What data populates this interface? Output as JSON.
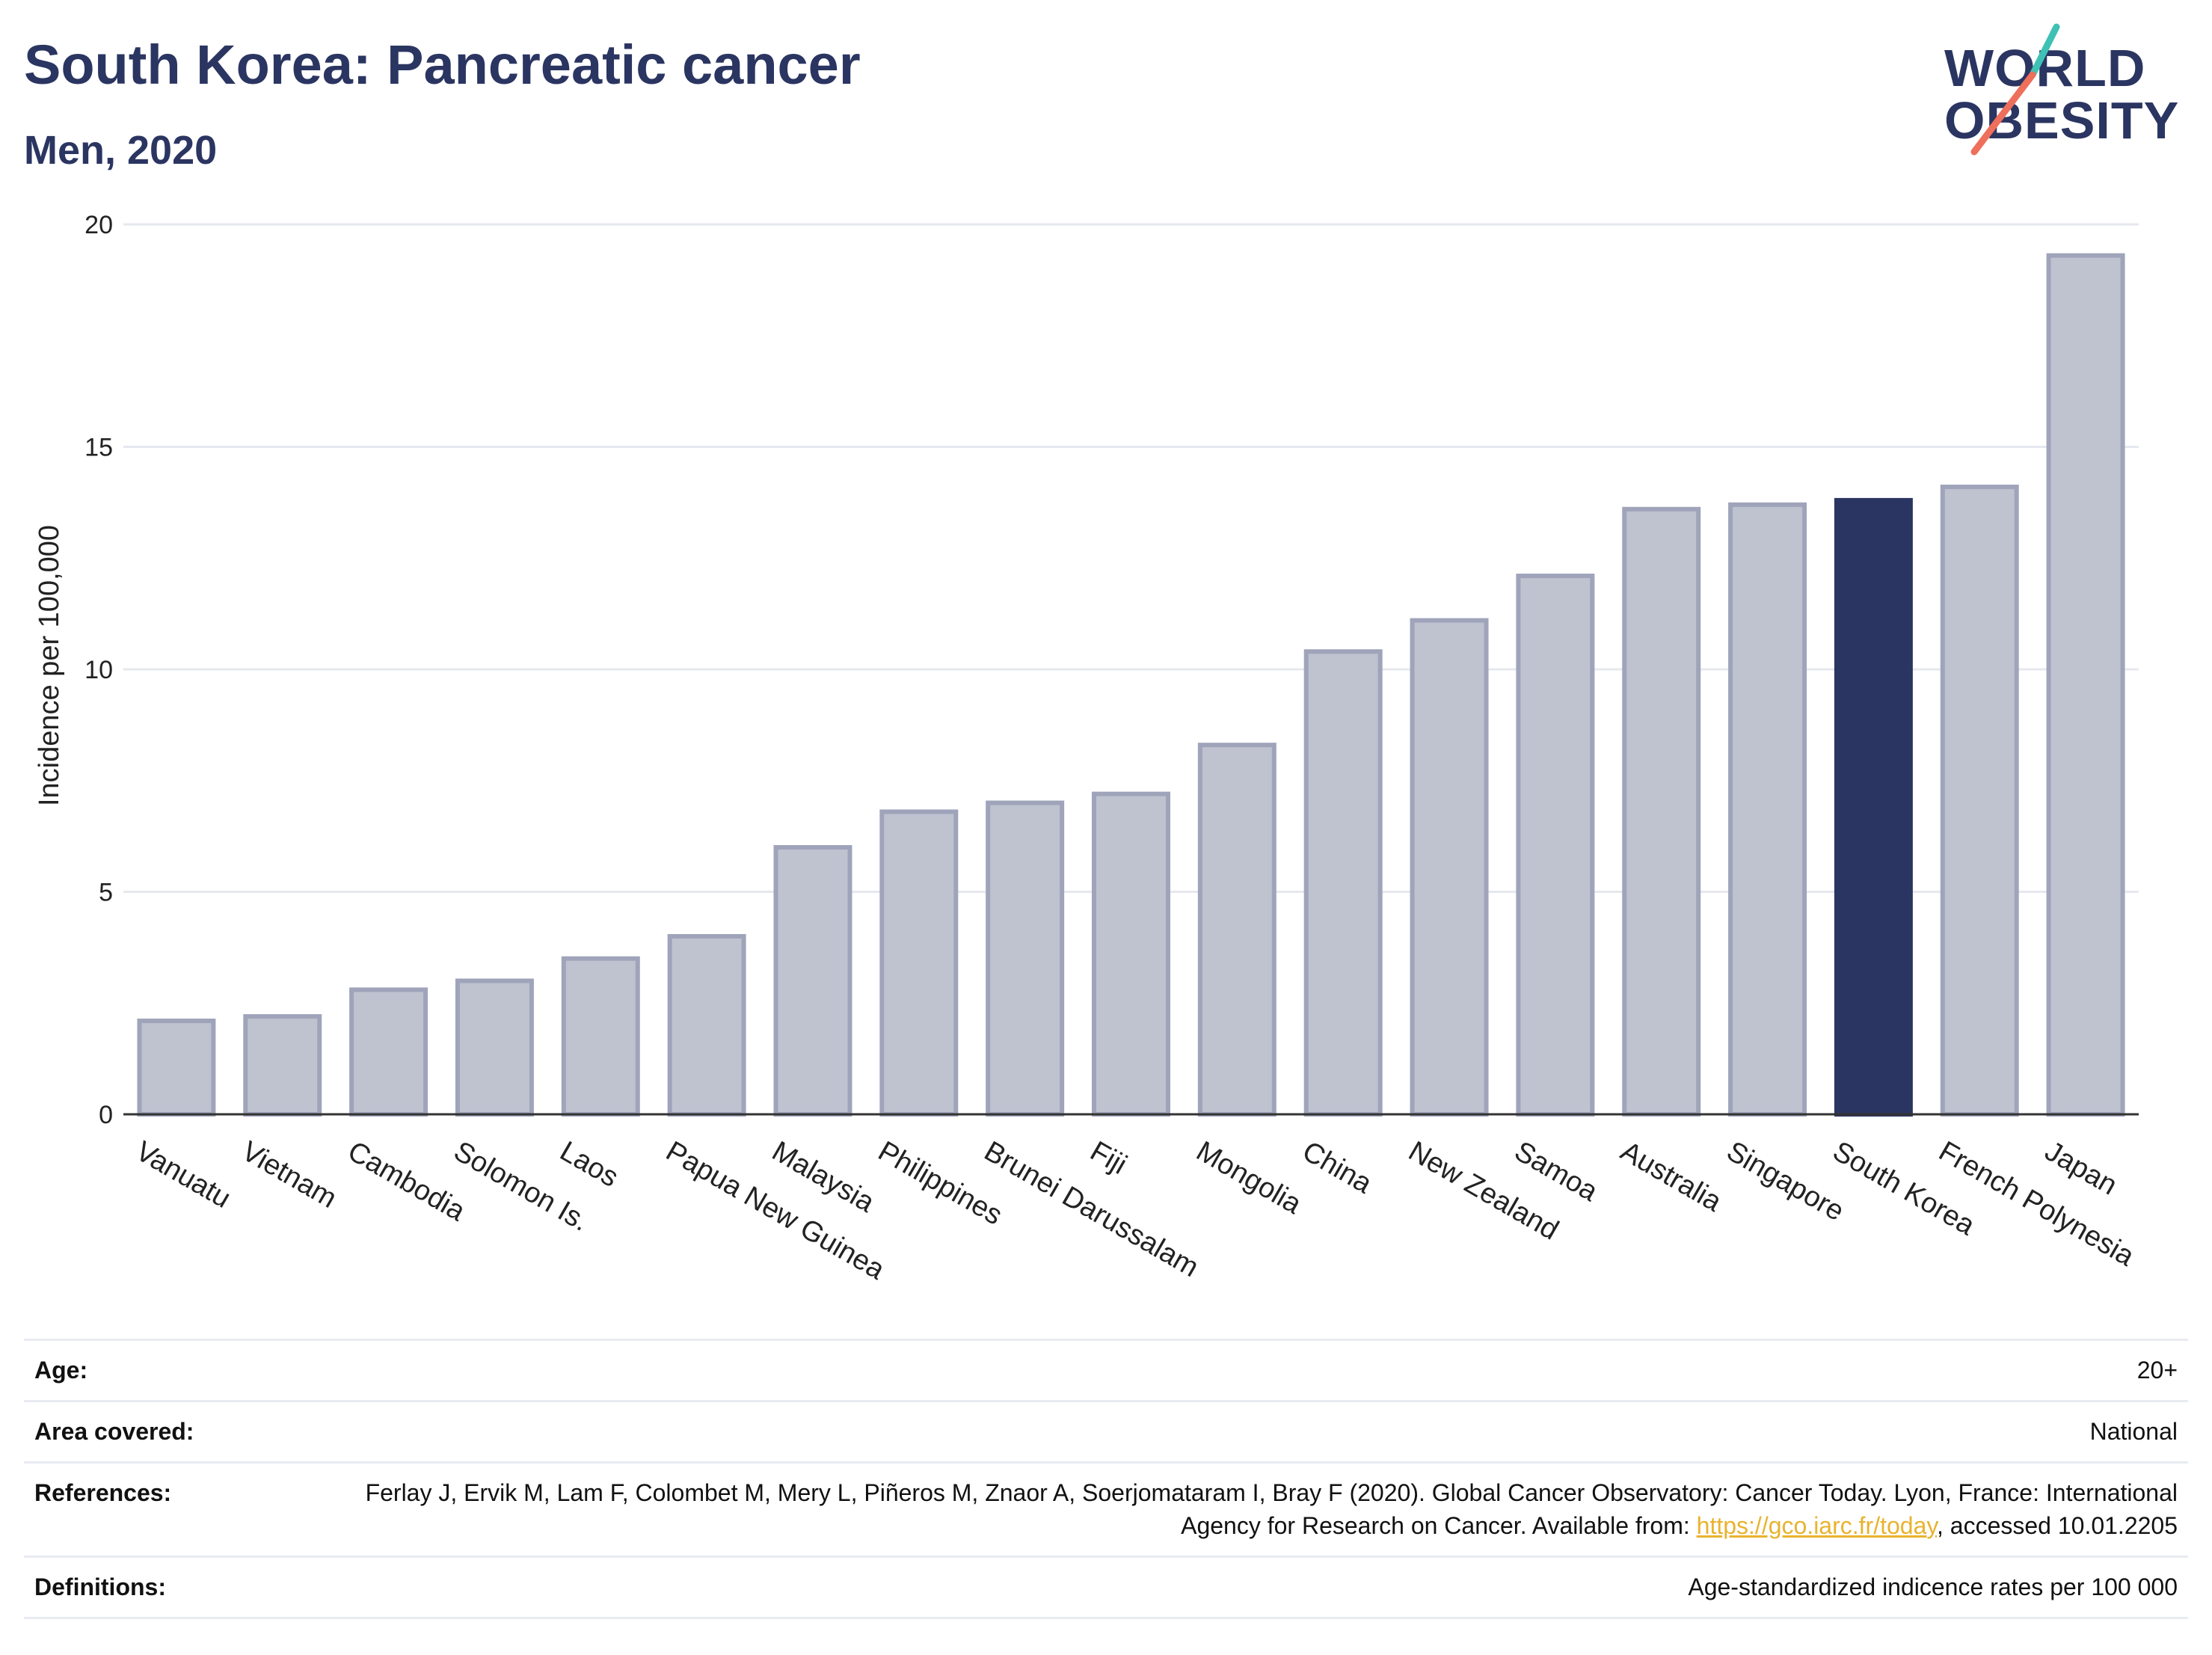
{
  "header": {
    "title": "South Korea: Pancreatic cancer",
    "subtitle": "Men, 2020"
  },
  "logo": {
    "line1": "WORLD",
    "line2": "OBESITY"
  },
  "colors": {
    "highlight": "#2b3561",
    "bar_fill": "#bfc2cf",
    "bar_stroke": "#9fa4ba",
    "grid": "#e6e8ef",
    "logo_teal": "#3fc1b5",
    "logo_coral": "#ee6f5b"
  },
  "chart_data": {
    "type": "bar",
    "categories": [
      "Vanuatu",
      "Vietnam",
      "Cambodia",
      "Solomon Is.",
      "Laos",
      "Papua New Guinea",
      "Malaysia",
      "Philippines",
      "Brunei Darussalam",
      "Fiji",
      "Mongolia",
      "China",
      "New Zealand",
      "Samoa",
      "Australia",
      "Singapore",
      "South Korea",
      "French Polynesia",
      "Japan"
    ],
    "values": [
      2.1,
      2.2,
      2.8,
      3.0,
      3.5,
      4.0,
      6.0,
      6.8,
      7.0,
      7.2,
      8.3,
      10.4,
      11.1,
      12.1,
      13.6,
      13.7,
      13.8,
      14.1,
      19.3
    ],
    "highlight": "South Korea",
    "ylabel": "Incidence per 100,000",
    "ylim": [
      0,
      20
    ],
    "yticks": [
      0,
      5,
      10,
      15,
      20
    ],
    "grid": true
  },
  "meta": {
    "age_label": "Age:",
    "age_value": "20+",
    "area_label": "Area covered:",
    "area_value": "National",
    "references_label": "References:",
    "references_text_1": "Ferlay J, Ervik M, Lam F, Colombet M, Mery L, Piñeros M, Znaor A, Soerjomataram I, Bray F (2020). Global Cancer Observatory: Cancer Today. Lyon, France: International Agency for Research on Cancer. Available from: ",
    "references_link": "https://gco.iarc.fr/today",
    "references_text_2": ", accessed 10.01.2205",
    "definitions_label": "Definitions:",
    "definitions_value": "Age-standardized indicence rates per 100 000"
  }
}
